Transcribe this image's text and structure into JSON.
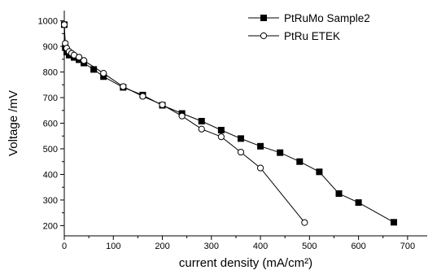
{
  "chart_data": {
    "type": "line",
    "title": "",
    "xlabel": "current density (mA/cm²)",
    "ylabel": "Voltage /mV",
    "xlim": [
      0,
      740
    ],
    "ylim": [
      160,
      1040
    ],
    "x_ticks": [
      0,
      100,
      200,
      300,
      400,
      500,
      600,
      700
    ],
    "y_ticks": [
      200,
      300,
      400,
      500,
      600,
      700,
      800,
      900,
      1000
    ],
    "x_tick_labels": [
      "0",
      "100",
      "200",
      "300",
      "400",
      "500",
      "600",
      "700"
    ],
    "y_tick_labels": [
      "200",
      "300",
      "400",
      "500",
      "600",
      "700",
      "800",
      "900",
      "1000"
    ],
    "grid": false,
    "legend_position": "top-right",
    "series": [
      {
        "name": "PtRuMo Sample2",
        "marker": "filled-square",
        "color": "#000000",
        "x": [
          0,
          2,
          5,
          10,
          20,
          30,
          40,
          60,
          80,
          120,
          160,
          200,
          240,
          280,
          320,
          360,
          400,
          440,
          480,
          520,
          560,
          600,
          672
        ],
        "y": [
          985,
          895,
          878,
          866,
          857,
          848,
          835,
          810,
          782,
          740,
          710,
          670,
          638,
          608,
          573,
          540,
          510,
          485,
          450,
          410,
          325,
          290,
          213
        ]
      },
      {
        "name": "PtRu ETEK",
        "marker": "open-circle",
        "color": "#000000",
        "x": [
          0,
          2,
          5,
          10,
          15,
          20,
          30,
          40,
          80,
          120,
          160,
          200,
          240,
          280,
          320,
          360,
          400,
          490
        ],
        "y": [
          985,
          912,
          893,
          880,
          873,
          866,
          858,
          845,
          795,
          743,
          705,
          672,
          628,
          577,
          547,
          487,
          425,
          212
        ]
      }
    ]
  }
}
